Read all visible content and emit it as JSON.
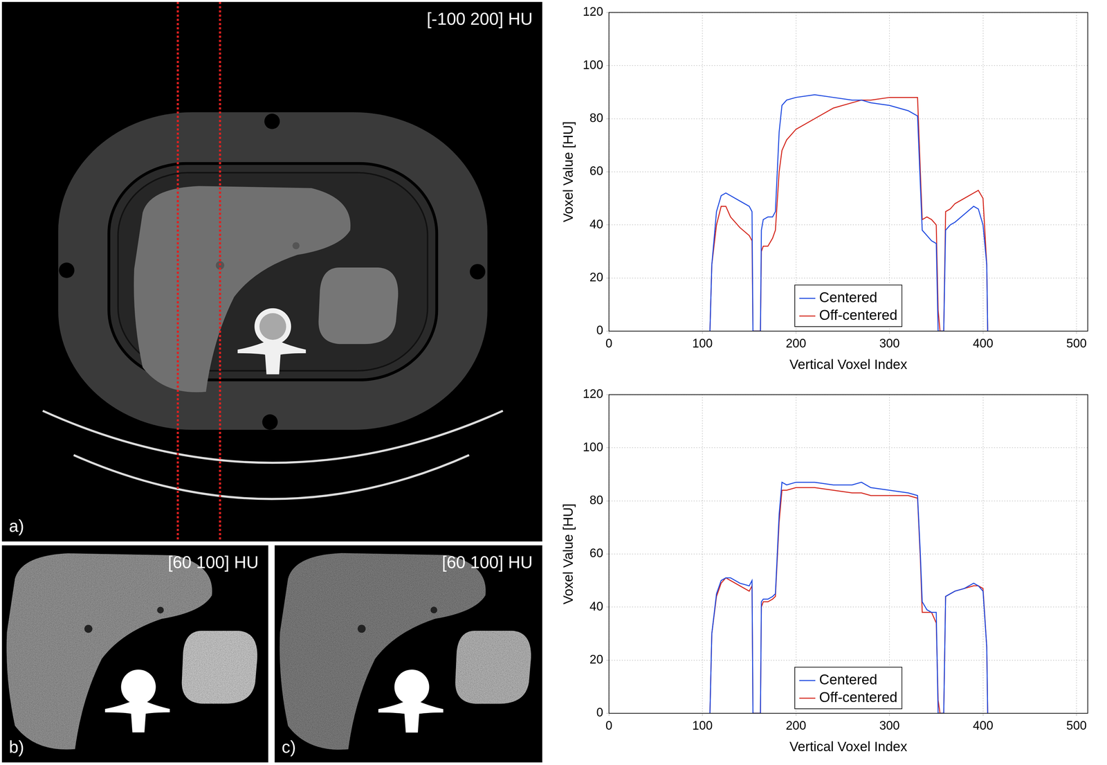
{
  "panels": [
    {
      "label": "a)",
      "window": "[-100 200] HU"
    },
    {
      "label": "b)",
      "window": "[60 100] HU"
    },
    {
      "label": "c)",
      "window": "[60 100] HU"
    }
  ],
  "chart_data": [
    {
      "type": "line",
      "xlabel": "Vertical Voxel Index",
      "ylabel": "Voxel Value [HU]",
      "x": [
        108,
        110,
        115,
        120,
        125,
        130,
        140,
        150,
        153,
        154,
        162,
        163,
        165,
        170,
        175,
        178,
        182,
        185,
        190,
        200,
        220,
        240,
        260,
        270,
        280,
        300,
        320,
        330,
        333,
        335,
        340,
        345,
        350,
        352,
        354,
        358,
        360,
        365,
        370,
        380,
        390,
        395,
        400,
        404,
        405
      ],
      "series": [
        {
          "name": "Centered",
          "color": "#1f4ae0",
          "values": [
            0,
            25,
            45,
            51,
            52,
            51,
            49,
            47,
            45,
            0,
            0,
            38,
            42,
            43,
            43,
            45,
            75,
            85,
            87,
            88,
            89,
            88,
            87,
            87,
            86,
            85,
            83,
            81,
            55,
            38,
            36,
            34,
            33,
            0,
            0,
            0,
            38,
            40,
            41,
            44,
            47,
            46,
            40,
            25,
            0
          ]
        },
        {
          "name": "Off-centered",
          "color": "#d4261c",
          "values": [
            0,
            25,
            40,
            47,
            47,
            43,
            39,
            36,
            34,
            0,
            0,
            30,
            32,
            32,
            35,
            38,
            60,
            68,
            72,
            76,
            80,
            84,
            86,
            87,
            87,
            88,
            88,
            88,
            60,
            42,
            43,
            42,
            40,
            8,
            0,
            0,
            45,
            46,
            48,
            50,
            52,
            53,
            50,
            25,
            0
          ]
        }
      ],
      "xlim": [
        0,
        512
      ],
      "xticks": [
        0,
        100,
        200,
        300,
        400,
        500
      ],
      "ylim": [
        0,
        120
      ],
      "yticks": [
        0,
        20,
        40,
        60,
        80,
        100,
        120
      ],
      "grid": true,
      "legend": "lower center"
    },
    {
      "type": "line",
      "xlabel": "Vertical Voxel Index",
      "ylabel": "Voxel Value [HU]",
      "x": [
        108,
        110,
        115,
        120,
        125,
        130,
        140,
        150,
        153,
        154,
        162,
        163,
        165,
        170,
        175,
        178,
        182,
        185,
        190,
        200,
        220,
        240,
        260,
        270,
        280,
        300,
        320,
        330,
        333,
        335,
        340,
        345,
        350,
        352,
        354,
        358,
        360,
        365,
        370,
        380,
        390,
        395,
        400,
        404,
        405
      ],
      "series": [
        {
          "name": "Centered",
          "color": "#1f4ae0",
          "values": [
            0,
            30,
            45,
            50,
            51,
            51,
            49,
            48,
            50,
            0,
            0,
            42,
            43,
            43,
            44,
            45,
            75,
            87,
            86,
            87,
            87,
            86,
            86,
            87,
            85,
            84,
            83,
            82,
            60,
            42,
            39,
            38,
            38,
            0,
            0,
            0,
            44,
            45,
            46,
            47,
            49,
            48,
            46,
            25,
            0
          ]
        },
        {
          "name": "Off-centered",
          "color": "#d4261c",
          "values": [
            0,
            30,
            44,
            49,
            51,
            50,
            48,
            46,
            48,
            0,
            0,
            40,
            42,
            42,
            43,
            44,
            72,
            84,
            84,
            85,
            85,
            84,
            83,
            83,
            82,
            82,
            82,
            81,
            58,
            38,
            38,
            38,
            34,
            5,
            0,
            0,
            44,
            45,
            46,
            47,
            48,
            48,
            47,
            25,
            0
          ]
        }
      ],
      "xlim": [
        0,
        512
      ],
      "xticks": [
        0,
        100,
        200,
        300,
        400,
        500
      ],
      "ylim": [
        0,
        120
      ],
      "yticks": [
        0,
        20,
        40,
        60,
        80,
        100,
        120
      ],
      "grid": true,
      "legend": "lower center"
    }
  ]
}
